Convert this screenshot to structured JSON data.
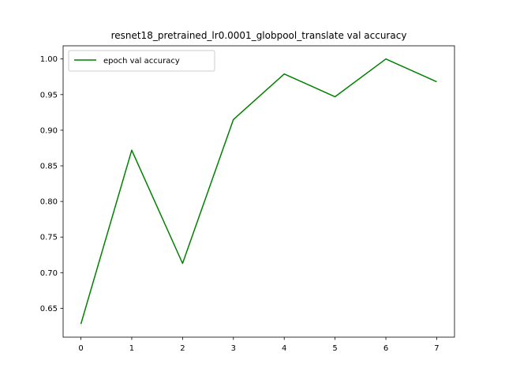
{
  "chart_data": {
    "type": "line",
    "title": "resnet18_pretrained_lr0.0001_globpool_translate val accuracy",
    "xlabel": "",
    "ylabel": "",
    "x": [
      0,
      1,
      2,
      3,
      4,
      5,
      6,
      7
    ],
    "series": [
      {
        "name": "epoch val accuracy",
        "color": "#008000",
        "values": [
          0.628,
          0.872,
          0.713,
          0.915,
          0.979,
          0.947,
          1.0,
          0.968
        ]
      }
    ],
    "xlim": [
      -0.35,
      7.35
    ],
    "ylim": [
      0.6095,
      1.0185
    ],
    "xticks": [
      "0",
      "1",
      "2",
      "3",
      "4",
      "5",
      "6",
      "7"
    ],
    "yticks": [
      "0.65",
      "0.70",
      "0.75",
      "0.80",
      "0.85",
      "0.90",
      "0.95",
      "1.00"
    ],
    "grid": false,
    "legend_position": "upper left"
  }
}
